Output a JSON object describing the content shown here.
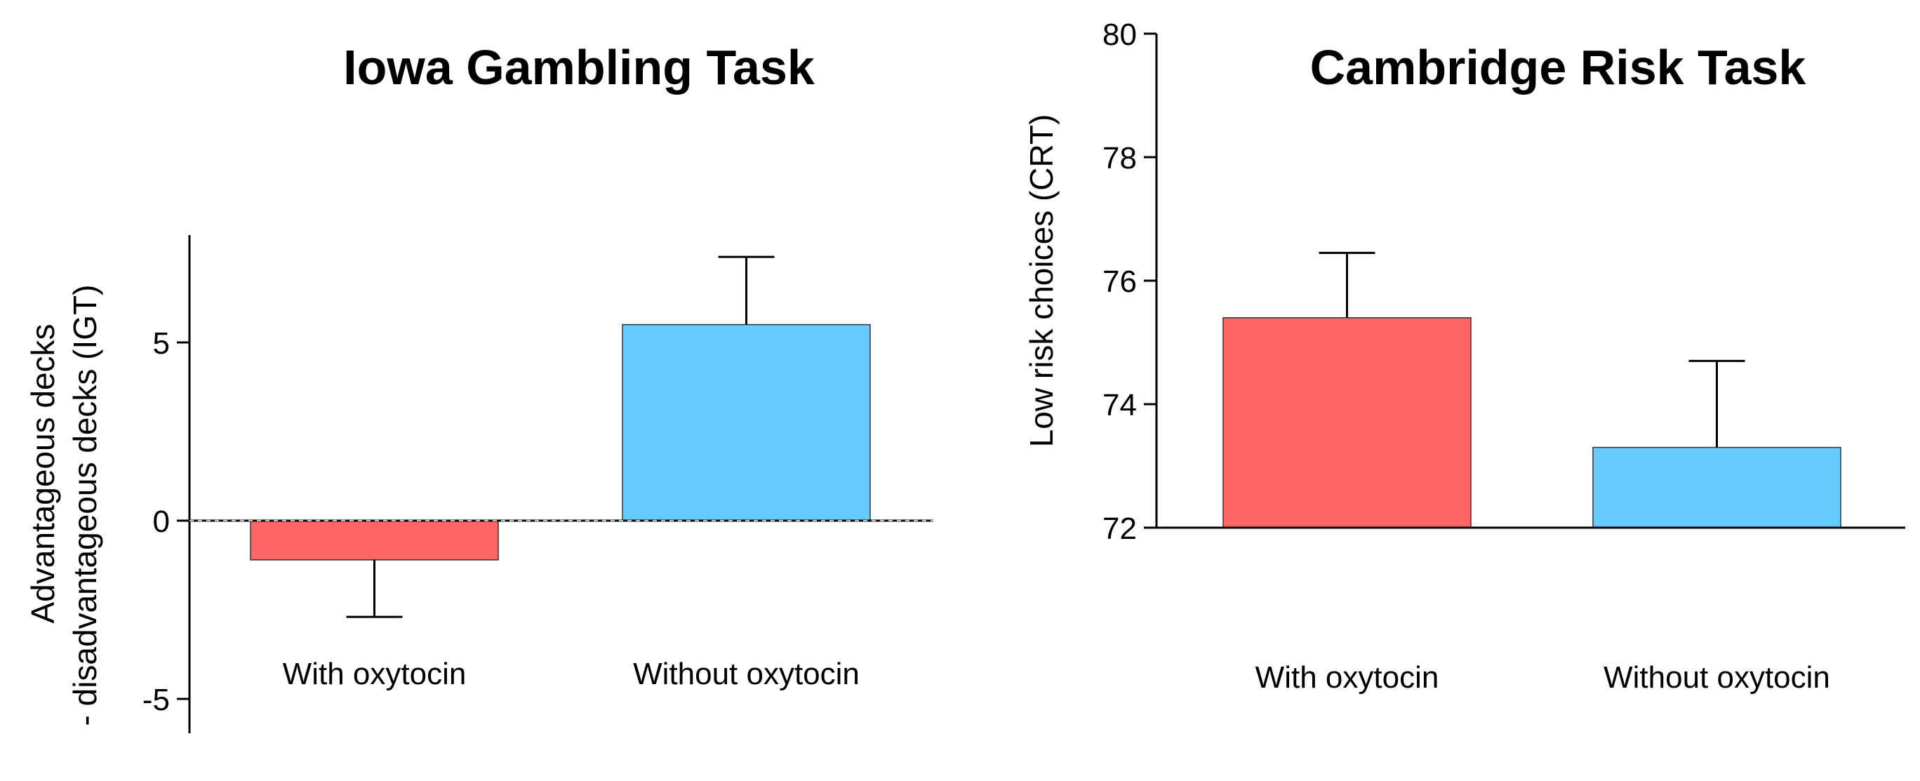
{
  "colors": {
    "with_oxytocin": "#ff6666",
    "without_oxytocin": "#66ccff",
    "axis": "#000000"
  },
  "chart_data": [
    {
      "type": "bar",
      "title": "Iowa Gambling Task",
      "ylabel_lines": [
        "Advantageous decks",
        "- disadvantageous decks (IGT)"
      ],
      "xlabel": "",
      "categories": [
        "With oxytocin",
        "Without oxytocin"
      ],
      "values": [
        -1.1,
        5.5
      ],
      "error": [
        1.6,
        1.9
      ],
      "error_direction": "away_from_zero",
      "yticks": [
        -5,
        0,
        5
      ],
      "ytick_labels": [
        "-5",
        "0",
        "5"
      ],
      "ylim": [
        -6,
        8
      ],
      "zero_line": "dashed",
      "bar_colors": [
        "#ff6666",
        "#66ccff"
      ]
    },
    {
      "type": "bar",
      "title": "Cambridge Risk Task",
      "ylabel": "Low risk choices (CRT)",
      "xlabel": "",
      "categories": [
        "With oxytocin",
        "Without oxytocin"
      ],
      "values": [
        75.4,
        73.3
      ],
      "error": [
        1.05,
        1.4
      ],
      "error_direction": "up",
      "yticks": [
        72,
        74,
        76,
        78,
        80
      ],
      "ytick_labels": [
        "72",
        "74",
        "76",
        "78",
        "80"
      ],
      "ylim": [
        72,
        80
      ],
      "bar_colors": [
        "#ff6666",
        "#66ccff"
      ]
    }
  ]
}
